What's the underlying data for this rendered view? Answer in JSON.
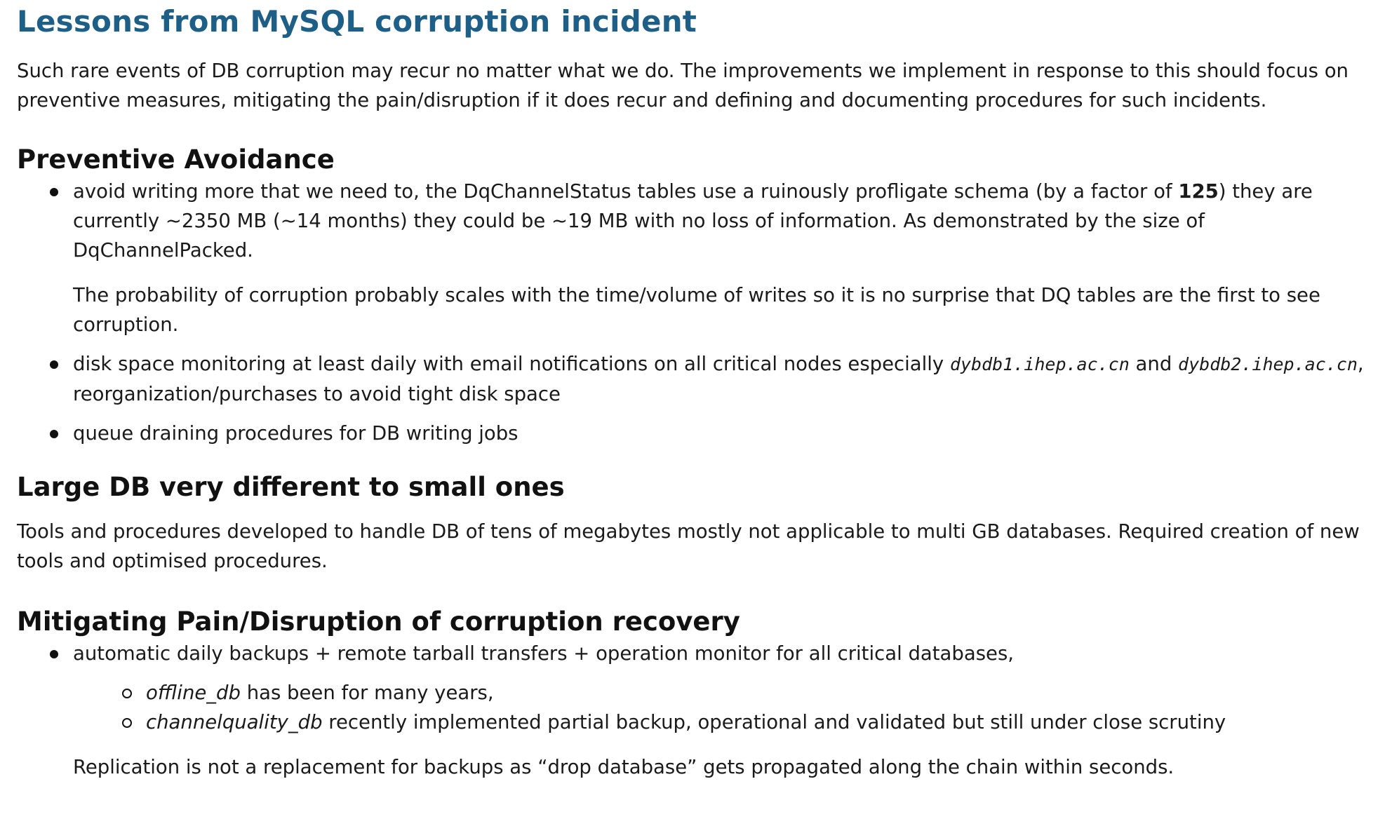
{
  "title": "Lessons from MySQL corruption incident",
  "intro": "Such rare events of DB corruption may recur no matter what we do. The improvements we implement in response to this should focus on preventive measures, mitigating the pain/disruption if it does recur and defining and documenting procedures for such incidents.",
  "preventive": {
    "heading": "Preventive Avoidance",
    "item1_part1": "avoid writing more that we need to, the DqChannelStatus tables use a ruinously profligate schema (by a factor of ",
    "item1_factor": "125",
    "item1_part2": ") they are currently ~2350 MB (~14 months) they could be ~19 MB with no loss of information. As demonstrated by the size of DqChannelPacked.",
    "item1_para": "The probability of corruption probably scales with the time/volume of writes so it is no surprise that DQ tables are the first to see corruption.",
    "item2_part1": "disk space monitoring at least daily with email notifications on all critical nodes especially ",
    "item2_host1": "dybdb1.ihep.ac.cn",
    "item2_and": " and ",
    "item2_host2": "dybdb2.ihep.ac.cn",
    "item2_part2": ", reorganization/purchases to avoid tight disk space",
    "item3": "queue draining procedures for DB writing jobs"
  },
  "large": {
    "heading": "Large DB very different to small ones",
    "text": "Tools and procedures developed to handle DB of tens of megabytes mostly not applicable to multi GB databases. Required creation of new tools and optimised procedures."
  },
  "mitigating": {
    "heading": "Mitigating Pain/Disruption of corruption recovery",
    "item1": "automatic daily backups + remote tarball transfers + operation monitor for all critical databases,",
    "sub1_name": "offline_db",
    "sub1_text": " has been for many years,",
    "sub2_name": "channelquality_db",
    "sub2_text": " recently implemented partial backup, operational and validated but still under close scrutiny",
    "replication": "Replication is not a replacement for backups as “drop database” gets propagated along the chain within seconds."
  }
}
